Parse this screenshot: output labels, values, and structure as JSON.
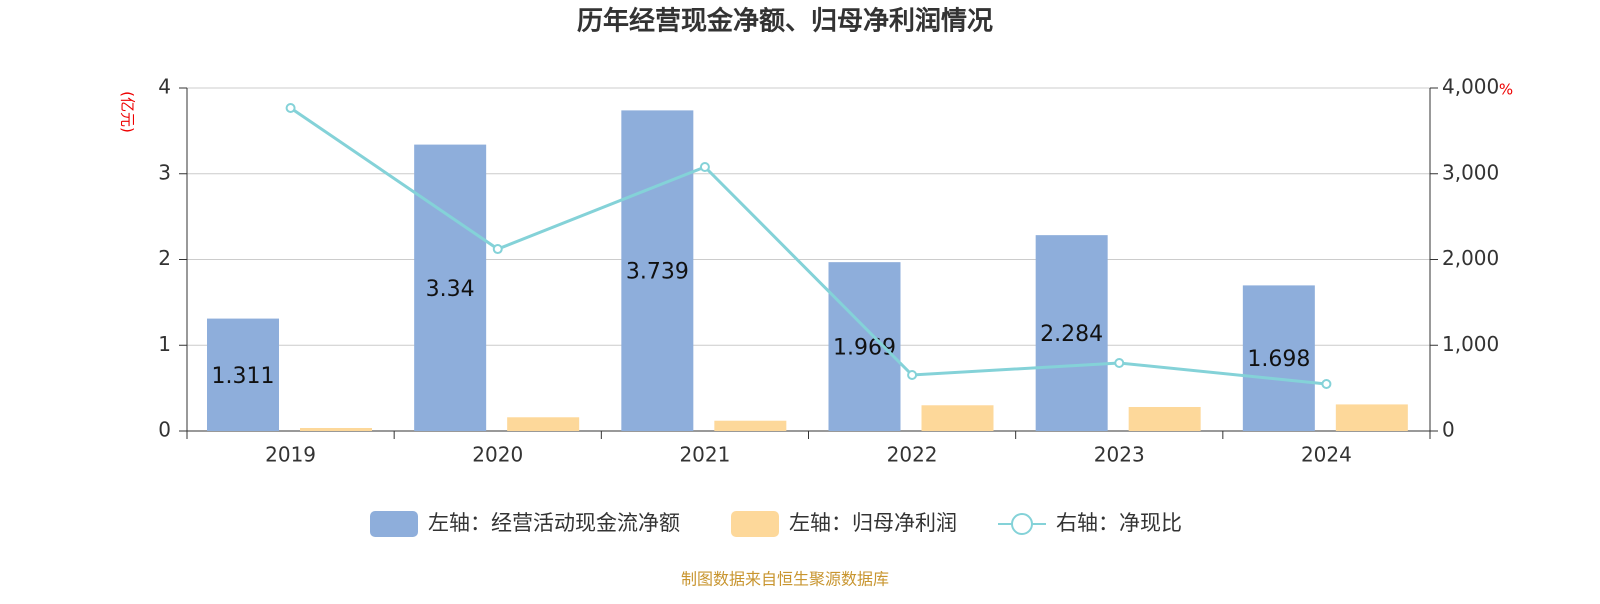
{
  "chart_data": {
    "type": "bar-line",
    "title": "历年经营现金净额、归母净利润情况",
    "y_unit": "(亿元)",
    "y2_unit": "%",
    "categories": [
      "2019",
      "2020",
      "2021",
      "2022",
      "2023",
      "2024"
    ],
    "series": [
      {
        "name": "左轴：经营活动现金流净额",
        "type": "bar",
        "color": "#8eaedb",
        "values": [
          1.311,
          3.34,
          3.739,
          1.969,
          2.284,
          1.698
        ]
      },
      {
        "name": "左轴：归母净利润",
        "type": "bar",
        "color": "#fdd89a",
        "values": [
          0.035,
          0.16,
          0.12,
          0.3,
          0.28,
          0.31
        ]
      },
      {
        "name": "右轴：净现比",
        "type": "line",
        "axis": "y2",
        "color": "#84d2d8",
        "values": [
          3767,
          2122,
          3079,
          653,
          793,
          548
        ]
      }
    ],
    "ylim": [
      0,
      4
    ],
    "yticks": [
      0,
      1,
      2,
      3,
      4
    ],
    "y2lim": [
      0,
      4000
    ],
    "y2ticks": [
      0,
      {
        "value": 1000,
        "label": "1,000"
      },
      {
        "value": 2000,
        "label": "2,000"
      },
      {
        "value": 3000,
        "label": "3,000"
      },
      {
        "value": 4000,
        "label": "4,000"
      }
    ],
    "grid": true,
    "source": "制图数据来自恒生聚源数据库"
  }
}
